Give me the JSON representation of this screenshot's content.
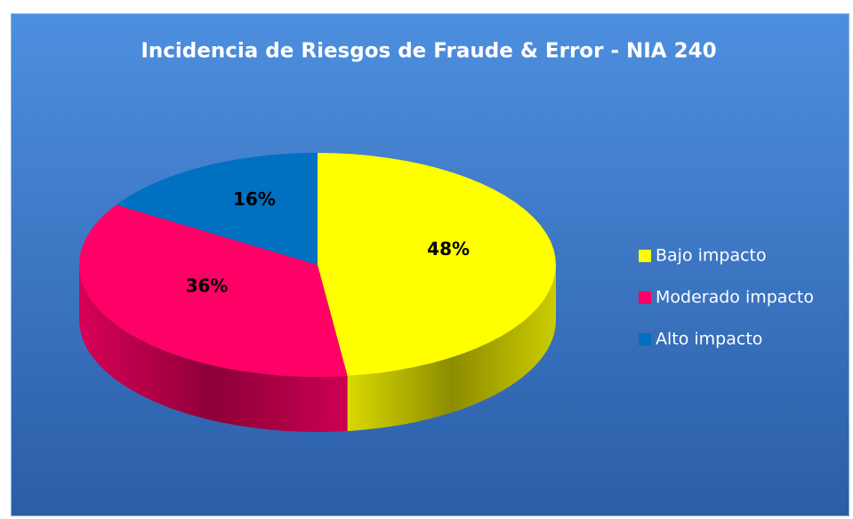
{
  "chart_data": {
    "type": "pie3d",
    "title": "Incidencia de Riesgos de Fraude & Error - NIA 240",
    "categories": [
      "Bajo impacto",
      "Moderado impacto",
      "Alto impacto"
    ],
    "values": [
      48,
      36,
      16
    ],
    "value_labels": [
      "48%",
      "36%",
      "16%"
    ],
    "colors": [
      "#ffff00",
      "#ff0066",
      "#0070c0"
    ],
    "legend": "right"
  }
}
